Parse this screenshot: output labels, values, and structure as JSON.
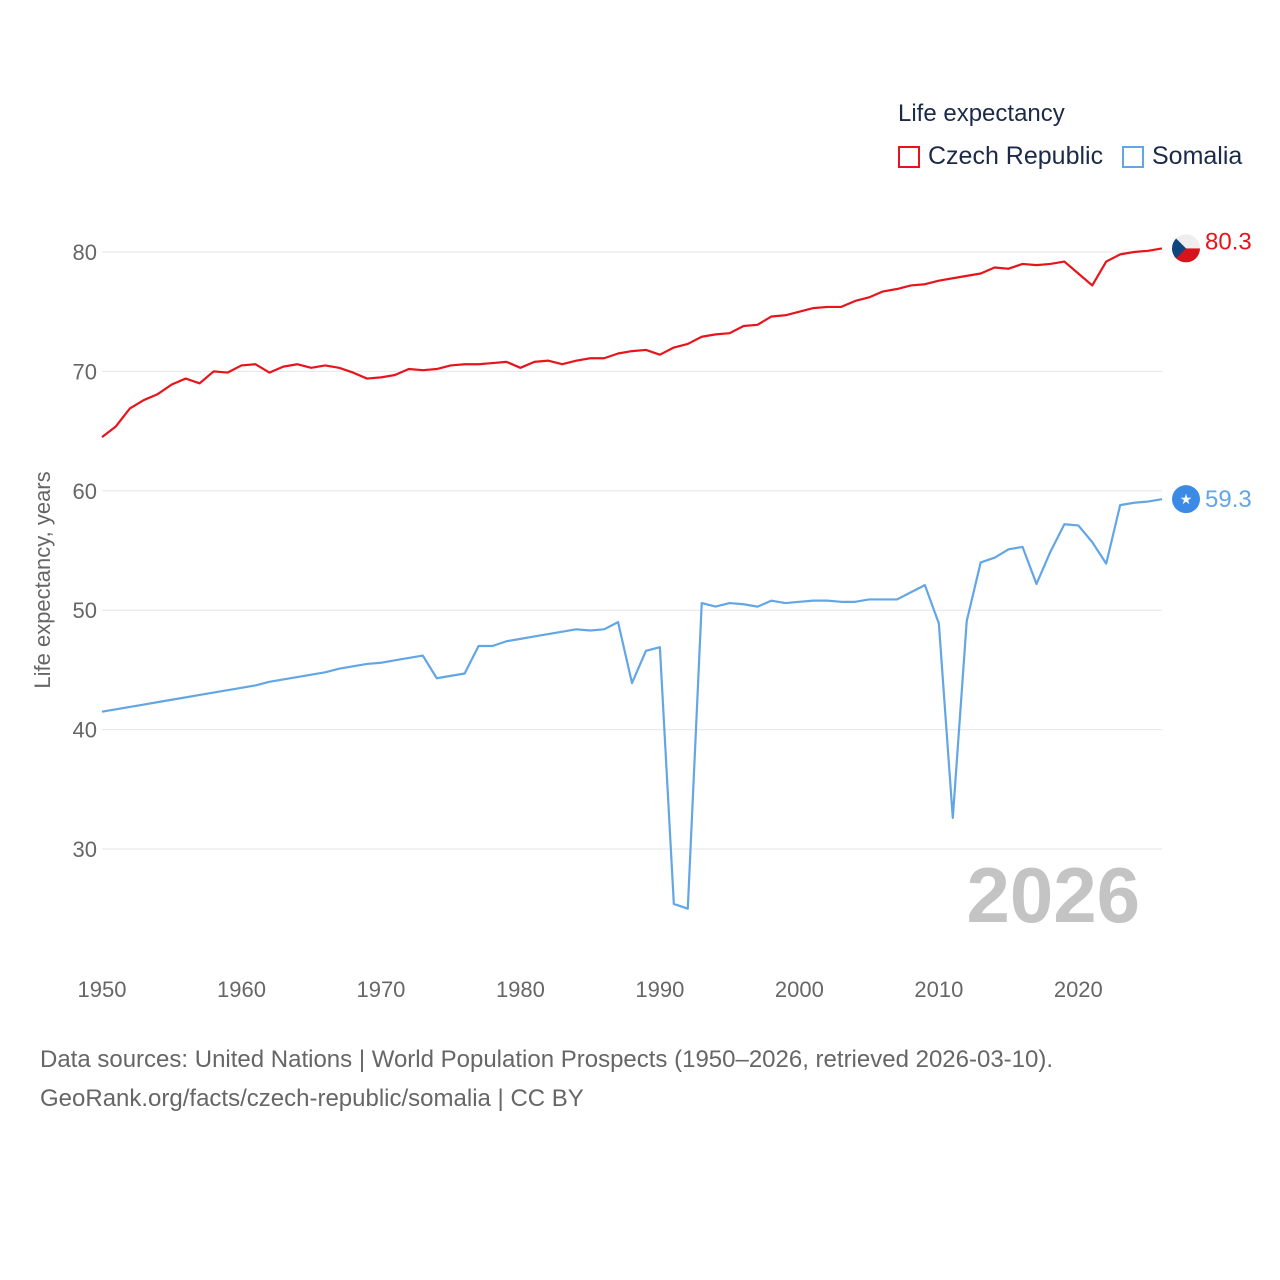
{
  "colors": {
    "czech": "#e8141c",
    "somalia": "#62a6e6",
    "grid": "#e6e6e6",
    "somalia_marker": "#3b8be6",
    "flag_red": "#d7141a",
    "flag_blue": "#11457e"
  },
  "legend": {
    "title": "Life expectancy",
    "items": [
      {
        "label": "Czech Republic",
        "color": "#e8141c"
      },
      {
        "label": "Somalia",
        "color": "#62a6e6"
      }
    ]
  },
  "chart_data": {
    "type": "line",
    "title": "Life expectancy",
    "ylabel": "Life expectancy, years",
    "xlabel": "",
    "xlim": [
      1950,
      2026
    ],
    "ylim": [
      22,
      85
    ],
    "yticks": [
      30,
      40,
      50,
      60,
      70,
      80
    ],
    "xticks": [
      1950,
      1960,
      1970,
      1980,
      1990,
      2000,
      2010,
      2020
    ],
    "year_watermark": "2026",
    "x": [
      1950,
      1951,
      1952,
      1953,
      1954,
      1955,
      1956,
      1957,
      1958,
      1959,
      1960,
      1961,
      1962,
      1963,
      1964,
      1965,
      1966,
      1967,
      1968,
      1969,
      1970,
      1971,
      1972,
      1973,
      1974,
      1975,
      1976,
      1977,
      1978,
      1979,
      1980,
      1981,
      1982,
      1983,
      1984,
      1985,
      1986,
      1987,
      1988,
      1989,
      1990,
      1991,
      1992,
      1993,
      1994,
      1995,
      1996,
      1997,
      1998,
      1999,
      2000,
      2001,
      2002,
      2003,
      2004,
      2005,
      2006,
      2007,
      2008,
      2009,
      2010,
      2011,
      2012,
      2013,
      2014,
      2015,
      2016,
      2017,
      2018,
      2019,
      2020,
      2021,
      2022,
      2023,
      2024,
      2025,
      2026
    ],
    "series": [
      {
        "name": "Czech Republic",
        "end_label": "80.3",
        "values": [
          64.5,
          65.4,
          66.9,
          67.6,
          68.1,
          68.9,
          69.4,
          69.0,
          70.0,
          69.9,
          70.5,
          70.6,
          69.9,
          70.4,
          70.6,
          70.3,
          70.5,
          70.3,
          69.9,
          69.4,
          69.5,
          69.7,
          70.2,
          70.1,
          70.2,
          70.5,
          70.6,
          70.6,
          70.7,
          70.8,
          70.3,
          70.8,
          70.9,
          70.6,
          70.9,
          71.1,
          71.1,
          71.5,
          71.7,
          71.8,
          71.4,
          72.0,
          72.3,
          72.9,
          73.1,
          73.2,
          73.8,
          73.9,
          74.6,
          74.7,
          75.0,
          75.3,
          75.4,
          75.4,
          75.9,
          76.2,
          76.7,
          76.9,
          77.2,
          77.3,
          77.6,
          77.8,
          78.0,
          78.2,
          78.7,
          78.6,
          79.0,
          78.9,
          79.0,
          79.2,
          78.2,
          77.2,
          79.2,
          79.8,
          80.0,
          80.1,
          80.3
        ]
      },
      {
        "name": "Somalia",
        "end_label": "59.3",
        "values": [
          41.5,
          41.7,
          41.9,
          42.1,
          42.3,
          42.5,
          42.7,
          42.9,
          43.1,
          43.3,
          43.5,
          43.7,
          44.0,
          44.2,
          44.4,
          44.6,
          44.8,
          45.1,
          45.3,
          45.5,
          45.6,
          45.8,
          46.0,
          46.2,
          44.3,
          44.5,
          44.7,
          47.0,
          47.0,
          47.4,
          47.6,
          47.8,
          48.0,
          48.2,
          48.4,
          48.3,
          48.4,
          49.0,
          43.9,
          46.6,
          46.9,
          25.4,
          25.0,
          50.6,
          50.3,
          50.6,
          50.5,
          50.3,
          50.8,
          50.6,
          50.7,
          50.8,
          50.8,
          50.7,
          50.7,
          50.9,
          50.9,
          50.9,
          51.5,
          52.1,
          48.9,
          32.6,
          49.1,
          54.0,
          54.4,
          55.1,
          55.3,
          52.2,
          54.9,
          57.2,
          57.1,
          55.7,
          53.9,
          58.8,
          59.0,
          59.1,
          59.3
        ]
      }
    ]
  },
  "footer": {
    "line1": "Data sources: United Nations | World Population Prospects (1950–2026, retrieved 2026-03-10).",
    "line2": "GeoRank.org/facts/czech-republic/somalia | CC BY"
  }
}
